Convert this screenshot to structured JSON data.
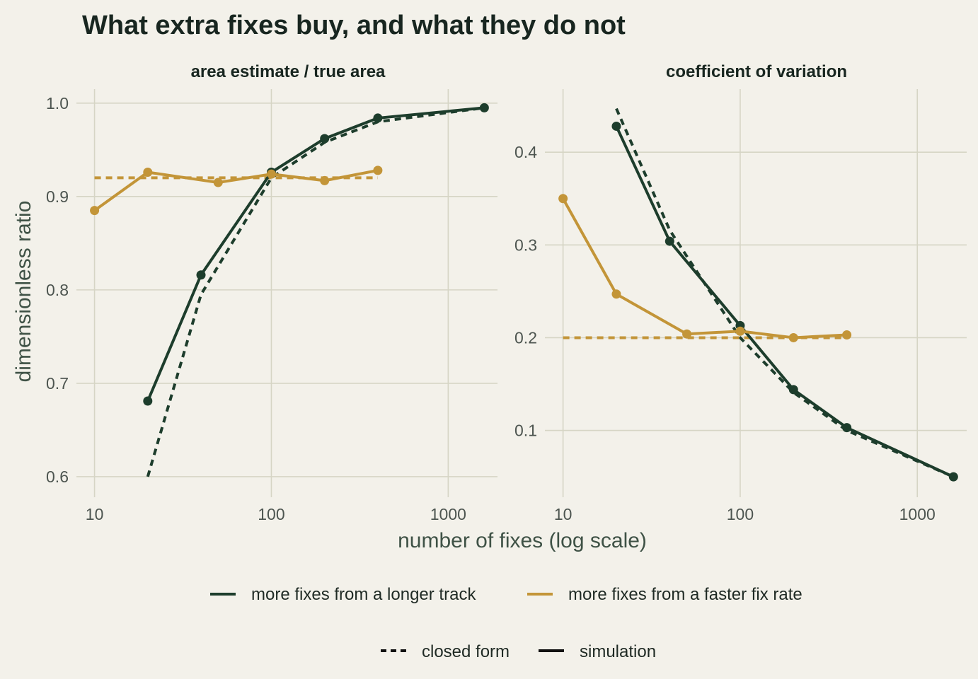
{
  "title": "What extra fixes buy, and what they do not",
  "xlabel": "number of fixes (log scale)",
  "ylabel": "dimensionless ratio",
  "colors": {
    "background": "#f3f1ea",
    "grid": "#d6d5c5",
    "longer_track": "#1d3d2c",
    "faster_rate": "#c39538",
    "text": "#182620"
  },
  "legend_color": [
    {
      "label": "more fixes from a longer track",
      "color": "#1d3d2c"
    },
    {
      "label": "more fixes from a faster fix rate",
      "color": "#c39538"
    }
  ],
  "legend_linetype": [
    {
      "label": "closed form",
      "dash": "dashed"
    },
    {
      "label": "simulation",
      "dash": "solid"
    }
  ],
  "chart_data": [
    {
      "type": "line",
      "title": "area estimate / true area",
      "xscale": "log",
      "xticks": [
        10,
        100,
        1000
      ],
      "xtick_labels": [
        "10",
        "100",
        "1000"
      ],
      "yticks": [
        0.6,
        0.7,
        0.8,
        0.9,
        1.0
      ],
      "ytick_labels": [
        "0.6",
        "0.7",
        "0.8",
        "0.9",
        "1.0"
      ],
      "xlim": [
        7.9,
        1900
      ],
      "ylim": [
        0.578,
        1.015
      ],
      "series": [
        {
          "name": "more fixes from a longer track",
          "kind": "simulation",
          "x": [
            20,
            40,
            100,
            200,
            400,
            1600
          ],
          "y": [
            0.681,
            0.816,
            0.926,
            0.962,
            0.984,
            0.995
          ]
        },
        {
          "name": "more fixes from a longer track",
          "kind": "closed form",
          "x": [
            20,
            40,
            100,
            200,
            400,
            1600
          ],
          "y": [
            0.6,
            0.795,
            0.92,
            0.958,
            0.98,
            0.995
          ]
        },
        {
          "name": "more fixes from a faster fix rate",
          "kind": "simulation",
          "x": [
            10,
            20,
            50,
            100,
            200,
            400
          ],
          "y": [
            0.885,
            0.926,
            0.915,
            0.924,
            0.917,
            0.928
          ]
        },
        {
          "name": "more fixes from a faster fix rate",
          "kind": "closed form",
          "x": [
            10,
            20,
            50,
            100,
            200,
            400
          ],
          "y": [
            0.92,
            0.92,
            0.92,
            0.92,
            0.92,
            0.92
          ]
        }
      ]
    },
    {
      "type": "line",
      "title": "coefficient of variation",
      "xscale": "log",
      "xticks": [
        10,
        100,
        1000
      ],
      "xtick_labels": [
        "10",
        "100",
        "1000"
      ],
      "yticks": [
        0.1,
        0.2,
        0.3,
        0.4
      ],
      "ytick_labels": [
        "0.1",
        "0.2",
        "0.3",
        "0.4"
      ],
      "xlim": [
        7.9,
        1900
      ],
      "ylim": [
        0.028,
        0.468
      ],
      "series": [
        {
          "name": "more fixes from a longer track",
          "kind": "simulation",
          "x": [
            20,
            40,
            100,
            200,
            400,
            1600
          ],
          "y": [
            0.428,
            0.304,
            0.213,
            0.144,
            0.103,
            0.05
          ]
        },
        {
          "name": "more fixes from a longer track",
          "kind": "closed form",
          "x": [
            20,
            40,
            100,
            200,
            400,
            1600
          ],
          "y": [
            0.447,
            0.316,
            0.2,
            0.141,
            0.1,
            0.05
          ]
        },
        {
          "name": "more fixes from a faster fix rate",
          "kind": "simulation",
          "x": [
            10,
            20,
            50,
            100,
            200,
            400
          ],
          "y": [
            0.35,
            0.247,
            0.204,
            0.207,
            0.2,
            0.203
          ]
        },
        {
          "name": "more fixes from a faster fix rate",
          "kind": "closed form",
          "x": [
            10,
            20,
            50,
            100,
            200,
            400
          ],
          "y": [
            0.2,
            0.2,
            0.2,
            0.2,
            0.2,
            0.2
          ]
        }
      ]
    }
  ]
}
